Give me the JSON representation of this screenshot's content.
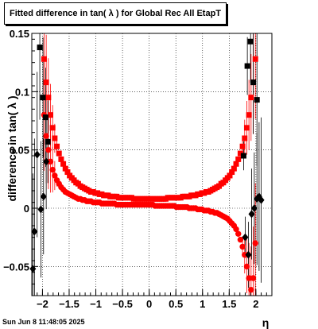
{
  "chart_data": {
    "type": "scatter",
    "title": "Fitted difference in tan( λ ) for Global Rec All EtapT",
    "xlabel": "η",
    "ylabel": "difference in tan( λ )",
    "xlim": [
      -2.2,
      2.3
    ],
    "ylim": [
      -0.075,
      0.15
    ],
    "grid": true,
    "x_ticks": [
      -2,
      -1.5,
      -1,
      -0.5,
      0,
      0.5,
      1,
      1.5,
      2
    ],
    "x_tick_labels": [
      "−2",
      "−1.5",
      "−1",
      "−0.5",
      "0",
      "0.5",
      "1",
      "1.5",
      "2"
    ],
    "y_ticks": [
      -0.05,
      0,
      0.05,
      0.1,
      0.15
    ],
    "y_tick_labels": [
      "−0.05",
      "0",
      "0.05",
      "0.1",
      "0.15"
    ],
    "series": [
      {
        "color": "#ff0000",
        "marker": "square",
        "x": [
          -1.97,
          -1.93,
          -1.89,
          -1.85,
          -1.81,
          -1.77,
          -1.73,
          -1.69,
          -1.65,
          -1.61,
          -1.57,
          -1.53,
          -1.49,
          -1.45,
          -1.41,
          -1.37,
          -1.33,
          -1.29,
          -1.25,
          -1.21,
          -1.17,
          -1.13,
          -1.09,
          -1.05,
          -1.01,
          -0.97,
          -0.93,
          -0.89,
          -0.85,
          -0.81,
          -0.77,
          -0.73,
          -0.69,
          -0.65,
          -0.61,
          -0.57,
          -0.53,
          -0.49,
          -0.45,
          -0.41,
          -0.37,
          -0.33,
          -0.29,
          -0.25,
          -0.21,
          -0.17,
          -0.13,
          -0.09,
          -0.05,
          -0.01,
          0.03,
          0.07,
          0.11,
          0.15,
          0.19,
          0.23,
          0.27,
          0.31,
          0.35,
          0.39,
          0.43,
          0.47,
          0.51,
          0.55,
          0.59,
          0.63,
          0.67,
          0.71,
          0.75,
          0.79,
          0.83,
          0.87,
          0.91,
          0.95,
          0.99,
          1.03,
          1.07,
          1.11,
          1.15,
          1.19,
          1.23,
          1.27,
          1.31,
          1.35,
          1.39,
          1.43,
          1.47,
          1.51,
          1.55,
          1.59,
          1.63,
          1.67,
          1.71,
          1.75,
          1.79,
          1.83,
          1.87,
          1.91,
          1.95,
          1.99
        ],
        "y": [
          0.128,
          0.108,
          0.095,
          0.08,
          0.069,
          0.06,
          0.053,
          0.047,
          0.042,
          0.038,
          0.034,
          0.031,
          0.028,
          0.026,
          0.024,
          0.022,
          0.021,
          0.019,
          0.018,
          0.017,
          0.016,
          0.015,
          0.014,
          0.014,
          0.013,
          0.013,
          0.012,
          0.012,
          0.011,
          0.011,
          0.011,
          0.01,
          0.01,
          0.01,
          0.01,
          0.009,
          0.009,
          0.009,
          0.009,
          0.009,
          0.009,
          0.009,
          0.008,
          0.008,
          0.008,
          0.008,
          0.008,
          0.008,
          0.008,
          0.008,
          0.008,
          0.008,
          0.008,
          0.008,
          0.008,
          0.008,
          0.008,
          0.008,
          0.009,
          0.009,
          0.009,
          0.009,
          0.009,
          0.009,
          0.009,
          0.01,
          0.01,
          0.01,
          0.01,
          0.011,
          0.011,
          0.011,
          0.012,
          0.012,
          0.013,
          0.013,
          0.014,
          0.014,
          0.015,
          0.016,
          0.017,
          0.018,
          0.019,
          0.021,
          0.022,
          0.024,
          0.026,
          0.028,
          0.031,
          0.034,
          0.038,
          0.042,
          0.047,
          0.053,
          0.06,
          0.069,
          0.08,
          0.095,
          0.108,
          0.128
        ]
      },
      {
        "color": "#ff0000",
        "marker": "circle",
        "x": [
          -1.97,
          -1.93,
          -1.89,
          -1.85,
          -1.81,
          -1.77,
          -1.73,
          -1.69,
          -1.65,
          -1.61,
          -1.57,
          -1.53,
          -1.49,
          -1.45,
          -1.41,
          -1.37,
          -1.33,
          -1.29,
          -1.25,
          -1.21,
          -1.17,
          -1.13,
          -1.09,
          -1.05,
          -1.01,
          -0.97,
          -0.93,
          -0.89,
          -0.85,
          -0.81,
          -0.77,
          -0.73,
          -0.69,
          -0.65,
          -0.61,
          -0.57,
          -0.53,
          -0.49,
          -0.45,
          -0.41,
          -0.37,
          -0.33,
          -0.29,
          -0.25,
          -0.21,
          -0.17,
          -0.13,
          -0.09,
          -0.05,
          -0.01,
          0.03,
          0.07,
          0.11,
          0.15,
          0.19,
          0.23,
          0.27,
          0.31,
          0.35,
          0.39,
          0.43,
          0.47,
          0.51,
          0.55,
          0.59,
          0.63,
          0.67,
          0.71,
          0.75,
          0.79,
          0.83,
          0.87,
          0.91,
          0.95,
          0.99,
          1.03,
          1.07,
          1.11,
          1.15,
          1.19,
          1.23,
          1.27,
          1.31,
          1.35,
          1.39,
          1.43,
          1.47,
          1.51,
          1.55,
          1.59,
          1.63,
          1.67,
          1.71,
          1.75,
          1.79,
          1.83,
          1.87,
          1.91,
          1.95,
          1.99
        ],
        "y": [
          0.08,
          0.062,
          0.05,
          0.04,
          0.033,
          0.028,
          0.024,
          0.021,
          0.018,
          0.016,
          0.014,
          0.013,
          0.012,
          0.011,
          0.01,
          0.009,
          0.008,
          0.008,
          0.007,
          0.007,
          0.006,
          0.006,
          0.006,
          0.005,
          0.005,
          0.005,
          0.005,
          0.004,
          0.004,
          0.004,
          0.004,
          0.004,
          0.004,
          0.004,
          0.003,
          0.003,
          0.003,
          0.003,
          0.003,
          0.003,
          0.003,
          0.003,
          0.003,
          0.003,
          0.003,
          0.003,
          0.003,
          0.003,
          0.003,
          0.003,
          0.003,
          0.003,
          0.002,
          0.002,
          0.002,
          0.002,
          0.002,
          0.002,
          0.002,
          0.002,
          0.002,
          0.002,
          0.001,
          0.001,
          0.001,
          0.001,
          0.001,
          0.001,
          0.0,
          0.0,
          0.0,
          0.0,
          -0.001,
          -0.001,
          -0.001,
          -0.002,
          -0.002,
          -0.002,
          -0.003,
          -0.003,
          -0.004,
          -0.004,
          -0.005,
          -0.006,
          -0.007,
          -0.008,
          -0.009,
          -0.011,
          -0.013,
          -0.015,
          -0.018,
          -0.022,
          -0.027,
          -0.033,
          -0.04,
          -0.05,
          -0.06,
          -0.07,
          -0.06,
          -0.03
        ]
      },
      {
        "color": "#000000",
        "marker": "square",
        "x": [
          -2.05,
          -1.99,
          -1.94,
          -1.9,
          1.77,
          1.84,
          1.9,
          1.95,
          2.02
        ],
        "y": [
          0.138,
          0.095,
          0.078,
          0.057,
          0.045,
          0.122,
          0.143,
          0.108,
          0.093
        ]
      },
      {
        "color": "#000000",
        "marker": "diamond",
        "x": [
          -2.18,
          -2.15,
          -2.1,
          -2.03,
          -1.98,
          -1.93,
          1.8,
          1.86,
          1.92,
          1.97,
          2.02,
          2.06,
          2.1
        ],
        "y": [
          -0.052,
          -0.02,
          0.046,
          -0.001,
          0.01,
          0.04,
          -0.025,
          -0.04,
          -0.005,
          0.0,
          0.008,
          0.01,
          0.007
        ]
      }
    ]
  },
  "datestamp": "Sun Jun  8 11:48:05 2025"
}
